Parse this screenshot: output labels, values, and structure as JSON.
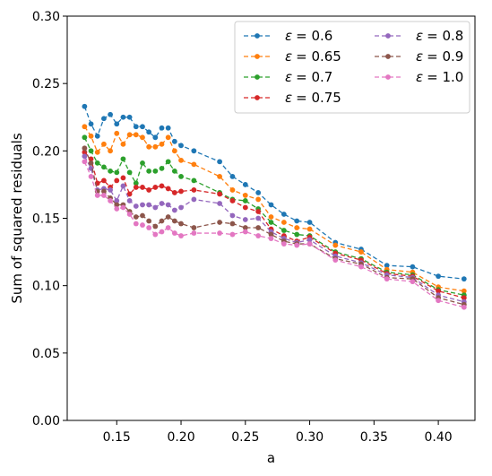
{
  "chart_data": {
    "type": "line",
    "title": "",
    "xlabel": "a",
    "ylabel": "Sum of squared residuals",
    "xlim": [
      0.1115,
      0.4285
    ],
    "ylim": [
      0.0,
      0.3
    ],
    "xticks": [
      0.15,
      0.2,
      0.25,
      0.3,
      0.35,
      0.4
    ],
    "xtick_labels": [
      "0.15",
      "0.20",
      "0.25",
      "0.30",
      "0.35",
      "0.40"
    ],
    "yticks": [
      0.0,
      0.05,
      0.1,
      0.15,
      0.2,
      0.25,
      0.3
    ],
    "ytick_labels": [
      "0.00",
      "0.05",
      "0.10",
      "0.15",
      "0.20",
      "0.25",
      "0.30"
    ],
    "grid": false,
    "legend_position": "top-right",
    "legend_columns": 2,
    "x": [
      0.125,
      0.13,
      0.135,
      0.14,
      0.145,
      0.15,
      0.155,
      0.16,
      0.165,
      0.17,
      0.175,
      0.18,
      0.185,
      0.19,
      0.195,
      0.2,
      0.21,
      0.23,
      0.24,
      0.25,
      0.26,
      0.27,
      0.28,
      0.29,
      0.3,
      0.32,
      0.34,
      0.36,
      0.38,
      0.4,
      0.42
    ],
    "series": [
      {
        "name": "ε = 0.6",
        "label_prefix": "ε",
        "label_value": "= 0.6",
        "color": "#1f77b4",
        "values": [
          0.233,
          0.22,
          0.211,
          0.224,
          0.227,
          0.22,
          0.225,
          0.225,
          0.218,
          0.218,
          0.214,
          0.21,
          0.217,
          0.217,
          0.207,
          0.204,
          0.2,
          0.192,
          0.181,
          0.175,
          0.169,
          0.16,
          0.153,
          0.148,
          0.147,
          0.132,
          0.127,
          0.115,
          0.114,
          0.107,
          0.105
        ]
      },
      {
        "name": "ε = 0.65",
        "label_prefix": "ε",
        "label_value": "= 0.65",
        "color": "#ff7f0e",
        "values": [
          0.218,
          0.211,
          0.199,
          0.205,
          0.2,
          0.213,
          0.205,
          0.212,
          0.212,
          0.21,
          0.203,
          0.203,
          0.205,
          0.21,
          0.2,
          0.193,
          0.19,
          0.181,
          0.171,
          0.167,
          0.164,
          0.151,
          0.147,
          0.143,
          0.142,
          0.13,
          0.125,
          0.112,
          0.11,
          0.099,
          0.096
        ]
      },
      {
        "name": "ε = 0.7",
        "label_prefix": "ε",
        "label_value": "= 0.7",
        "color": "#2ca02c",
        "values": [
          0.21,
          0.2,
          0.191,
          0.188,
          0.185,
          0.184,
          0.194,
          0.184,
          0.176,
          0.191,
          0.185,
          0.185,
          0.187,
          0.192,
          0.185,
          0.181,
          0.178,
          0.169,
          0.164,
          0.163,
          0.157,
          0.147,
          0.141,
          0.138,
          0.137,
          0.125,
          0.12,
          0.11,
          0.108,
          0.097,
          0.093
        ]
      },
      {
        "name": "ε = 0.75",
        "label_prefix": "ε",
        "label_value": "= 0.75",
        "color": "#d62728",
        "values": [
          0.199,
          0.194,
          0.176,
          0.178,
          0.173,
          0.178,
          0.18,
          0.168,
          0.173,
          0.173,
          0.171,
          0.173,
          0.174,
          0.172,
          0.169,
          0.17,
          0.171,
          0.168,
          0.163,
          0.158,
          0.155,
          0.142,
          0.137,
          0.133,
          0.136,
          0.124,
          0.119,
          0.109,
          0.107,
          0.096,
          0.091
        ]
      },
      {
        "name": "ε = 0.8",
        "label_prefix": "ε",
        "label_value": "= 0.8",
        "color": "#9467bd",
        "values": [
          0.196,
          0.187,
          0.171,
          0.172,
          0.171,
          0.163,
          0.174,
          0.163,
          0.159,
          0.16,
          0.16,
          0.158,
          0.161,
          0.16,
          0.156,
          0.158,
          0.164,
          0.161,
          0.152,
          0.149,
          0.15,
          0.14,
          0.135,
          0.132,
          0.134,
          0.122,
          0.117,
          0.108,
          0.106,
          0.093,
          0.088
        ]
      },
      {
        "name": "ε = 0.9",
        "label_prefix": "ε",
        "label_value": "= 0.9",
        "color": "#8c564b",
        "values": [
          0.202,
          0.191,
          0.17,
          0.17,
          0.165,
          0.16,
          0.16,
          0.155,
          0.151,
          0.152,
          0.148,
          0.144,
          0.148,
          0.151,
          0.148,
          0.146,
          0.143,
          0.147,
          0.146,
          0.143,
          0.143,
          0.138,
          0.133,
          0.131,
          0.131,
          0.12,
          0.116,
          0.106,
          0.105,
          0.091,
          0.086
        ]
      },
      {
        "name": "ε = 1.0",
        "label_prefix": "ε",
        "label_value": "= 1.0",
        "color": "#e377c2",
        "values": [
          0.192,
          0.181,
          0.167,
          0.167,
          0.163,
          0.157,
          0.158,
          0.153,
          0.146,
          0.145,
          0.143,
          0.138,
          0.14,
          0.143,
          0.139,
          0.137,
          0.139,
          0.139,
          0.138,
          0.14,
          0.137,
          0.135,
          0.131,
          0.13,
          0.131,
          0.119,
          0.114,
          0.105,
          0.103,
          0.089,
          0.084
        ]
      }
    ]
  }
}
